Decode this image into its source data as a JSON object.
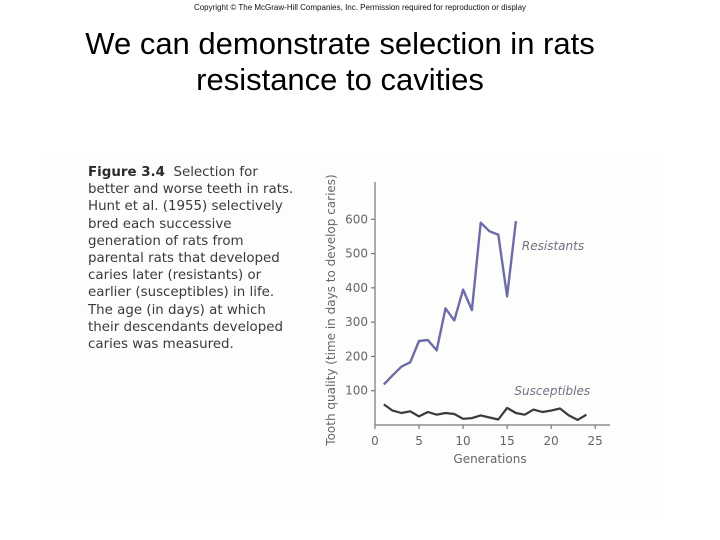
{
  "header": {
    "copyright": "Copyright © The McGraw-Hill Companies, Inc. Permission required for reproduction or display"
  },
  "slide": {
    "title_line1": "We can demonstrate selection in rats",
    "title_line2": "resistance to cavities"
  },
  "caption": {
    "figure_label": "Figure 3.4",
    "text": "Selection for\nbetter and worse teeth in rats.\nHunt et al. (1955) selectively\nbred each successive\ngeneration of rats from\nparental rats that developed\ncaries later (resistants) or\nearlier (susceptibles) in life.\nThe age (in days) at which\ntheir descendants developed\ncaries was measured."
  },
  "colors": {
    "resistants": "#6c6ca8",
    "susceptibles": "#3a3a3a"
  },
  "chart_data": {
    "type": "line",
    "xlabel": "Generations",
    "ylabel": "Tooth quality (time in days to develop caries)",
    "xlim": [
      0,
      26
    ],
    "ylim": [
      0,
      700
    ],
    "x_ticks": [
      0,
      5,
      10,
      15,
      20,
      25
    ],
    "y_ticks": [
      100,
      200,
      300,
      400,
      500,
      600
    ],
    "series": [
      {
        "name": "Resistants",
        "x": [
          1,
          2,
          3,
          4,
          5,
          6,
          7,
          8,
          9,
          10,
          11,
          12,
          13,
          14,
          15,
          16
        ],
        "y": [
          118,
          145,
          170,
          183,
          245,
          248,
          218,
          340,
          305,
          395,
          335,
          590,
          565,
          555,
          375,
          595
        ]
      },
      {
        "name": "Susceptibles",
        "x": [
          1,
          2,
          3,
          4,
          5,
          6,
          7,
          8,
          9,
          10,
          11,
          12,
          13,
          14,
          15,
          16,
          17,
          18,
          19,
          20,
          21,
          22,
          23,
          24
        ],
        "y": [
          60,
          42,
          35,
          40,
          25,
          38,
          30,
          35,
          32,
          18,
          20,
          28,
          22,
          16,
          50,
          35,
          30,
          45,
          38,
          42,
          48,
          28,
          15,
          30
        ]
      }
    ]
  }
}
